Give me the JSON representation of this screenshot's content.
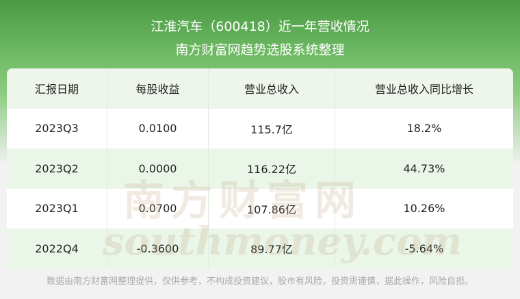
{
  "header": {
    "title": "江淮汽车（600418）近一年营收情况",
    "subtitle": "南方财富网趋势选股系统整理"
  },
  "table": {
    "columns": [
      "汇报日期",
      "每股收益",
      "营业总收入",
      "营业总收入同比增长"
    ],
    "rows": [
      [
        "2023Q3",
        "0.0100",
        "115.7亿",
        "18.2%"
      ],
      [
        "2023Q2",
        "0.0000",
        "116.22亿",
        "44.73%"
      ],
      [
        "2023Q1",
        "0.0700",
        "107.86亿",
        "10.26%"
      ],
      [
        "2022Q4",
        "-0.3600",
        "89.77亿",
        "-5.64%"
      ]
    ]
  },
  "watermark": [
    "南方财富网",
    "southmoney.com"
  ],
  "footer": "数据由南方财富网整理提供，仅供参考，不构成投资建议，股市有风险，投资需谨慎，据此操作，风险自担。"
}
